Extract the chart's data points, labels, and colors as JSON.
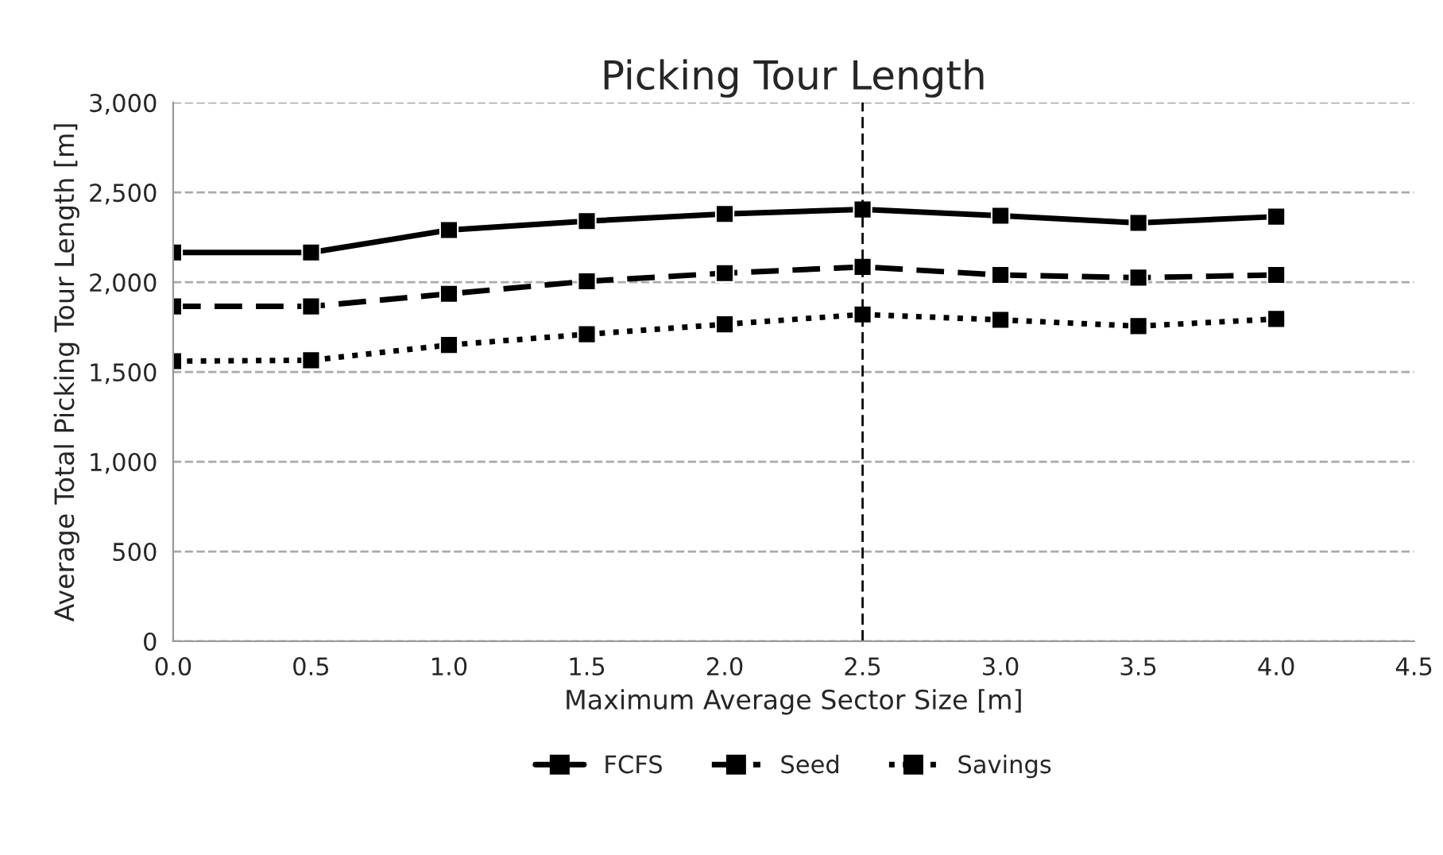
{
  "chart_data": {
    "type": "line",
    "title": "Picking Tour Length",
    "xlabel": "Maximum Average Sector Size [m]",
    "ylabel": "Average Total Picking Tour Length [m]",
    "x": [
      0.0,
      0.5,
      1.0,
      1.5,
      2.0,
      2.5,
      3.0,
      3.5,
      4.0
    ],
    "series": [
      {
        "name": "FCFS",
        "color": "#000000",
        "line_style": "solid",
        "values": [
          2165,
          2165,
          2290,
          2340,
          2380,
          2405,
          2370,
          2330,
          2365
        ]
      },
      {
        "name": "Seed",
        "color": "#000000",
        "line_style": "dashed",
        "values": [
          1865,
          1865,
          1935,
          2005,
          2050,
          2085,
          2040,
          2025,
          2040
        ]
      },
      {
        "name": "Savings",
        "color": "#000000",
        "line_style": "dotted",
        "values": [
          1560,
          1565,
          1650,
          1710,
          1765,
          1820,
          1790,
          1755,
          1795
        ]
      }
    ],
    "marker": "square",
    "xlim": [
      0.0,
      4.5
    ],
    "xticks": [
      {
        "value": 0,
        "label": "0.0"
      },
      0.5,
      {
        "value": 1,
        "label": "1.0"
      },
      1.5,
      {
        "value": 2,
        "label": "2.0"
      },
      2.5,
      {
        "value": 3,
        "label": "3.0"
      },
      3.5,
      {
        "value": 4,
        "label": "4.0"
      },
      4.5
    ],
    "ylim": [
      0,
      3000
    ],
    "yticks": [
      0,
      500,
      {
        "value": 1000,
        "label": "1,000"
      },
      {
        "value": 1500,
        "label": "1,500"
      },
      {
        "value": 2000,
        "label": "2,000"
      },
      {
        "value": 2500,
        "label": "2,500"
      },
      {
        "value": 3000,
        "label": "3,000"
      }
    ],
    "ref_lines": [
      {
        "axis": "x",
        "value": 2.5,
        "color": "#000000",
        "line_style": "dashed"
      }
    ],
    "grid": "y",
    "legend": "bottom"
  }
}
